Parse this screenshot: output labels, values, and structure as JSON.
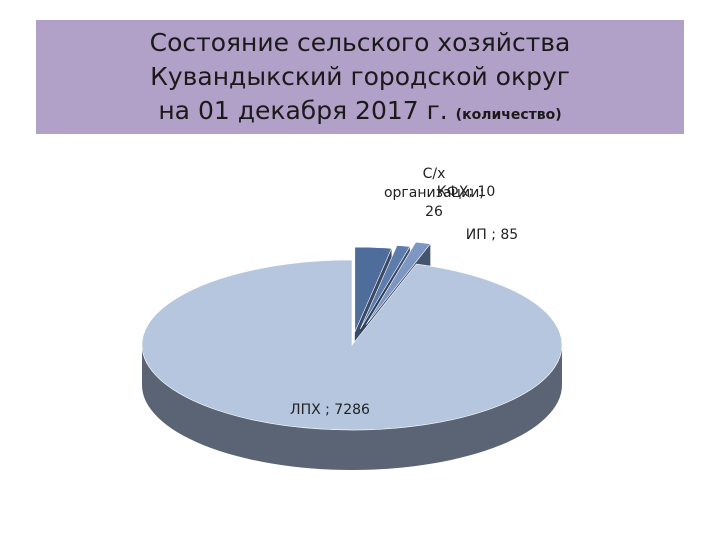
{
  "title": {
    "line1": "Состояние сельского хозяйства",
    "line2": "Кувандыкский городской округ",
    "line3": "на 01 декабря 2017 г.",
    "note": "(количество)"
  },
  "chart_data": {
    "type": "pie",
    "style": "3d-exploded",
    "slices": [
      {
        "label": "С/х организации",
        "value": 26,
        "color": "#4f6d9a",
        "side": "#2e4060"
      },
      {
        "label": "КФХ",
        "value": 10,
        "color": "#5d7bab",
        "side": "#33476a"
      },
      {
        "label": "ИП",
        "value": 85,
        "color": "#7e96c2",
        "side": "#3a4a66"
      },
      {
        "label": "ЛПХ",
        "value": 7286,
        "color": "#b7c6df",
        "side": "#5a6475"
      }
    ],
    "data_labels": [
      {
        "lines": [
          "С/х",
          "организации;",
          "26"
        ]
      },
      {
        "lines": [
          "КФХ; 10"
        ]
      },
      {
        "lines": [
          "ИП ; 85"
        ]
      },
      {
        "lines": [
          "ЛПХ ; 7286"
        ]
      }
    ]
  }
}
